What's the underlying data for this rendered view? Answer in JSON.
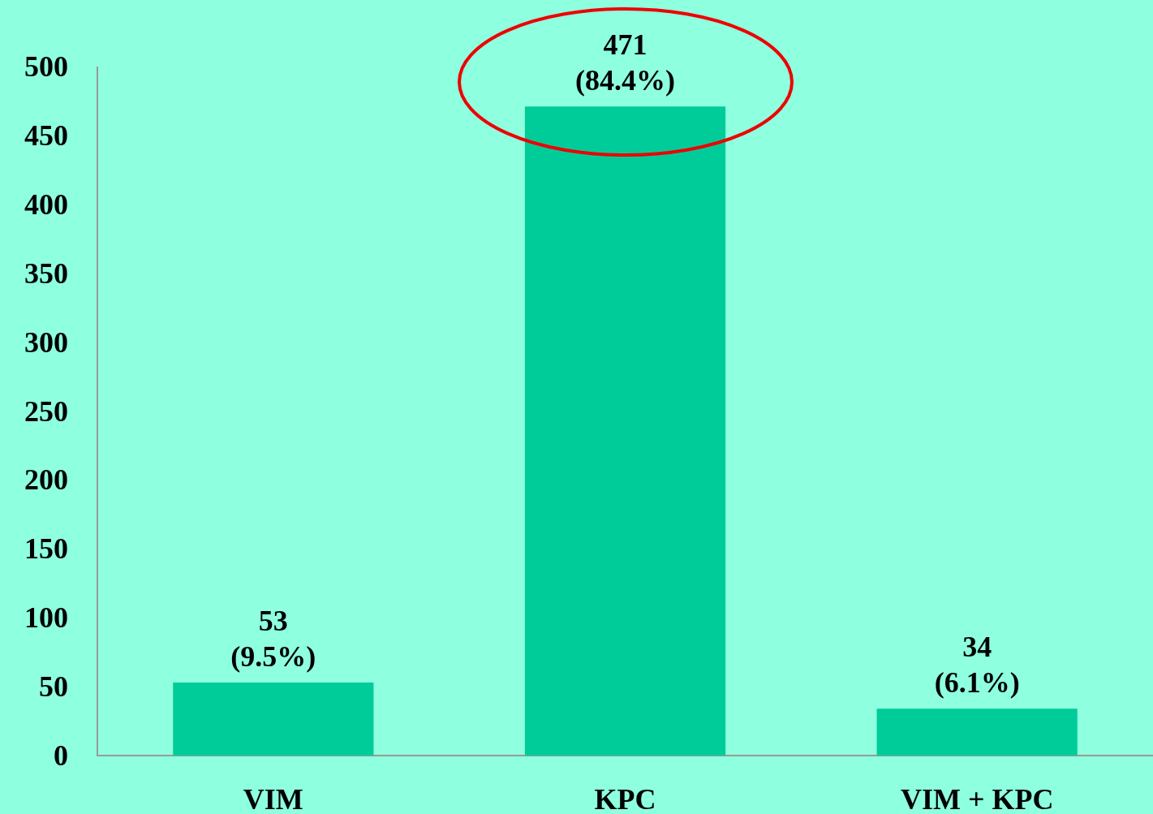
{
  "chart_data": {
    "type": "bar",
    "categories": [
      "VIM",
      "KPC",
      "VIM + KPC"
    ],
    "values": [
      53,
      471,
      34
    ],
    "value_labels": [
      "53\n(9.5%)",
      "471\n(84.4%)",
      "34\n(6.1%)"
    ],
    "color": "#00cc99",
    "ylim": [
      0,
      500
    ],
    "yticks": [
      0,
      50,
      100,
      150,
      200,
      250,
      300,
      350,
      400,
      450,
      500
    ],
    "grid": false
  }
}
